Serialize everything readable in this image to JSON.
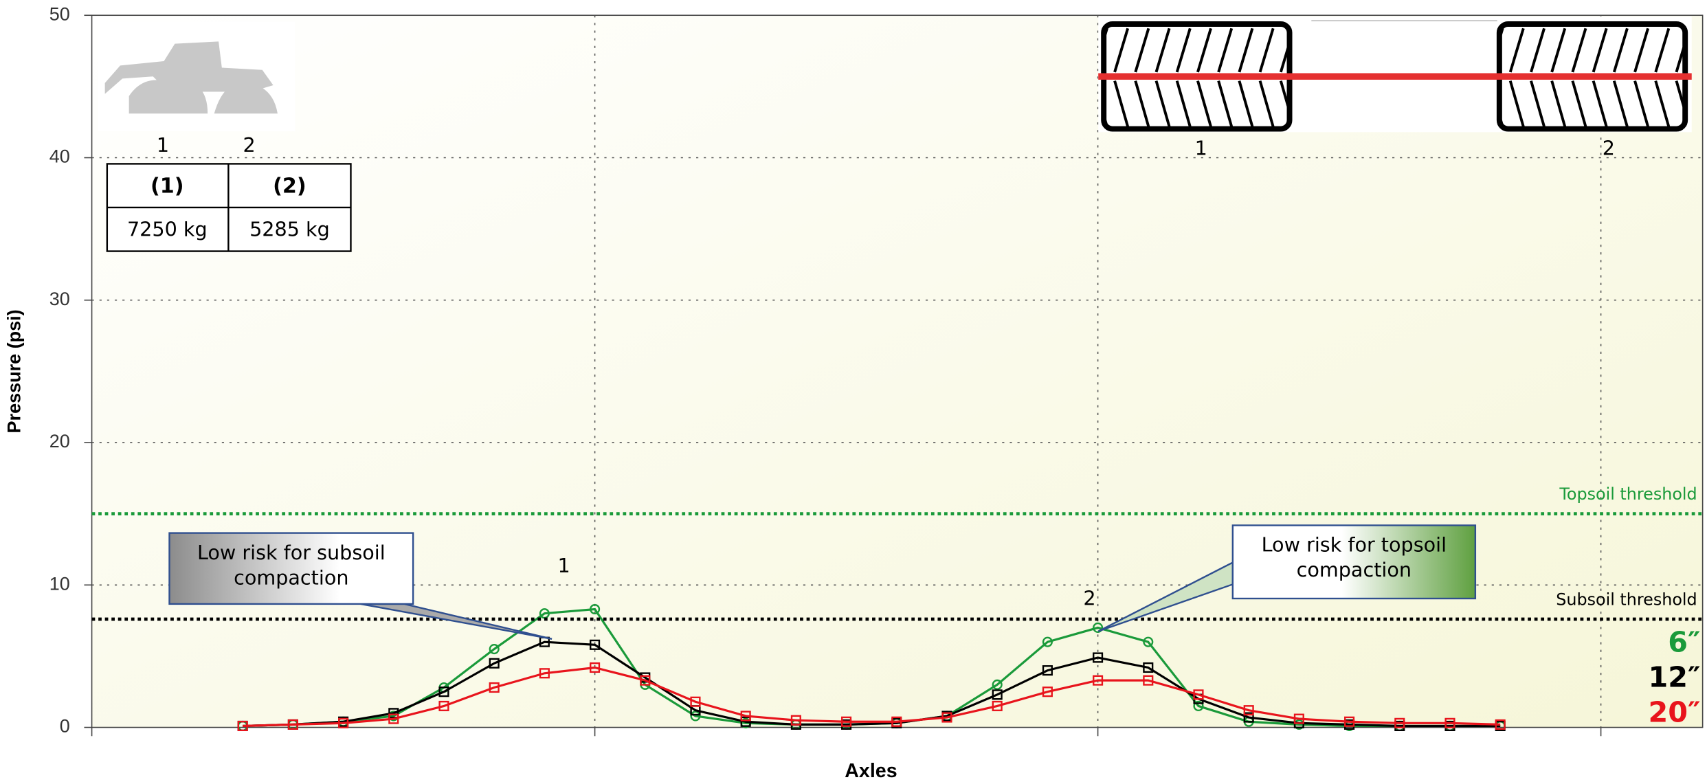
{
  "chart_data": {
    "type": "line",
    "y_label": "Pressure (psi)",
    "x_label": "Axles",
    "xlim": [
      0,
      3.2
    ],
    "xticks": [
      0,
      1,
      2,
      3
    ],
    "ylim": [
      0,
      50
    ],
    "yticks": [
      0,
      10,
      20,
      30,
      40,
      50
    ],
    "grid": true,
    "x": [
      0.3,
      0.4,
      0.5,
      0.6,
      0.7,
      0.8,
      0.9,
      1.0,
      1.1,
      1.2,
      1.3,
      1.4,
      1.5,
      1.6,
      1.7,
      1.8,
      1.9,
      2.0,
      2.1,
      2.2,
      2.3,
      2.4,
      2.5,
      2.6,
      2.7,
      2.8
    ],
    "series": [
      {
        "name": "6″",
        "color": "#1a9a3a",
        "marker": "circle",
        "values": [
          0.1,
          0.2,
          0.4,
          0.8,
          2.8,
          5.5,
          8.0,
          8.3,
          3.0,
          0.8,
          0.3,
          0.2,
          0.2,
          0.3,
          0.8,
          3.0,
          6.0,
          7.0,
          6.0,
          1.5,
          0.4,
          0.2,
          0.1,
          0.1,
          0.1,
          0.1
        ]
      },
      {
        "name": "12″",
        "color": "#000000",
        "marker": "square",
        "values": [
          0.1,
          0.2,
          0.4,
          1.0,
          2.5,
          4.5,
          6.0,
          5.8,
          3.5,
          1.2,
          0.4,
          0.2,
          0.2,
          0.3,
          0.8,
          2.3,
          4.0,
          4.9,
          4.2,
          2.0,
          0.7,
          0.3,
          0.2,
          0.1,
          0.1,
          0.1
        ]
      },
      {
        "name": "20″",
        "color": "#e8141c",
        "marker": "square",
        "values": [
          0.1,
          0.2,
          0.3,
          0.6,
          1.5,
          2.8,
          3.8,
          4.2,
          3.3,
          1.8,
          0.8,
          0.5,
          0.4,
          0.4,
          0.7,
          1.5,
          2.5,
          3.3,
          3.3,
          2.3,
          1.2,
          0.6,
          0.4,
          0.3,
          0.3,
          0.2
        ]
      }
    ],
    "reference_lines": [
      {
        "label": "Topsoil threshold",
        "value": 15,
        "color": "#1a9a3a"
      },
      {
        "label": "Subsoil threshold",
        "value": 7.6,
        "color": "#000000"
      }
    ],
    "peak_labels": [
      "1",
      "2"
    ],
    "callouts": [
      {
        "lines": [
          "Low risk for subsoil",
          "compaction"
        ]
      },
      {
        "lines": [
          "Low risk for topsoil",
          "compaction"
        ]
      }
    ]
  },
  "axle_table": {
    "axle_numbers": [
      "1",
      "2"
    ],
    "headers": [
      "(1)",
      "(2)"
    ],
    "rows": [
      [
        "7250 kg",
        "5285 kg"
      ]
    ]
  },
  "tire_labels": [
    "1",
    "2"
  ]
}
